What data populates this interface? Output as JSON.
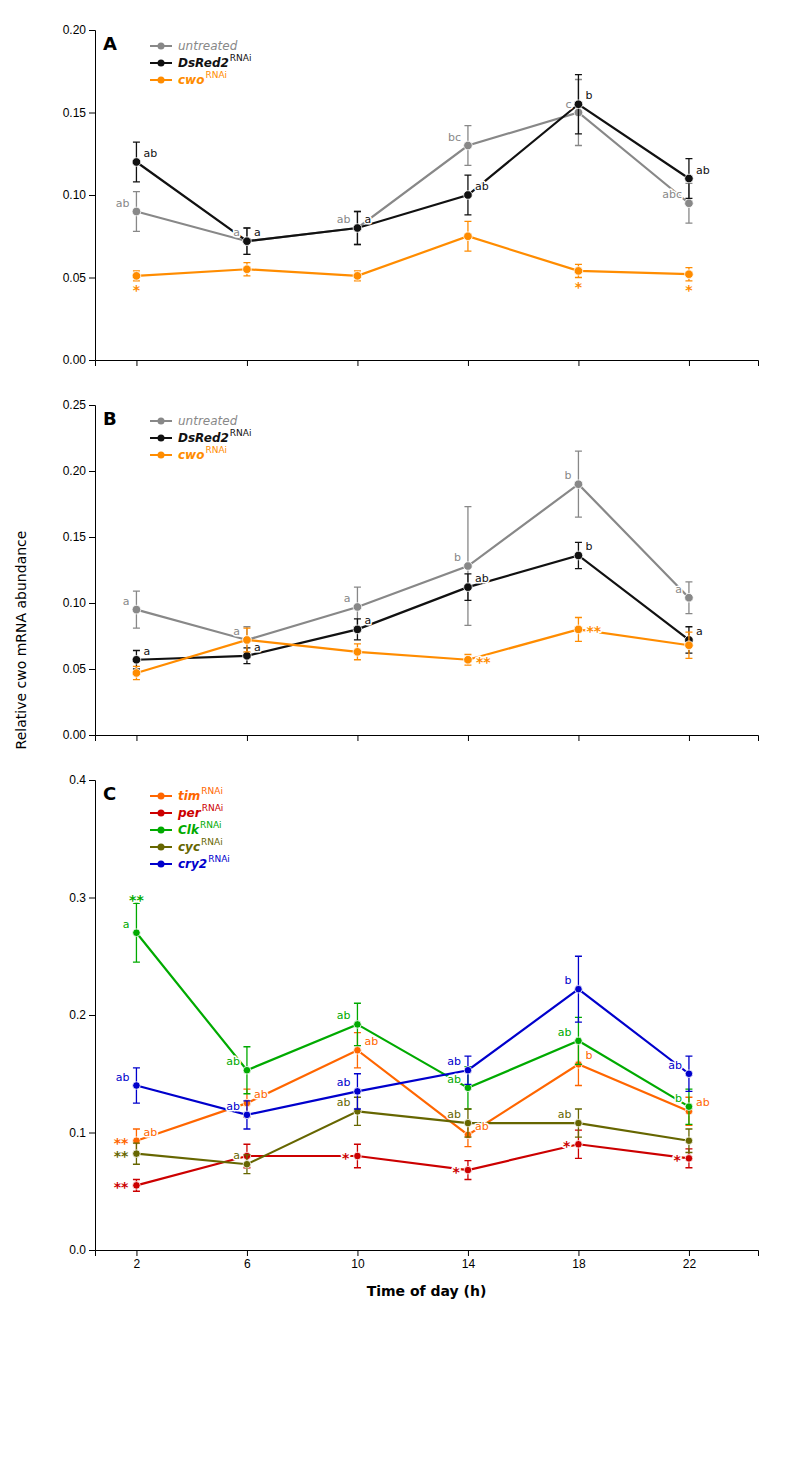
{
  "chart_data": [
    {
      "type": "line",
      "title": "A",
      "x": [
        2,
        6,
        10,
        14,
        18,
        22
      ],
      "xlim": [
        0.5,
        24.5
      ],
      "xticks": [
        2,
        6,
        10,
        14,
        18,
        22
      ],
      "ylim": [
        0,
        0.2
      ],
      "yticks": [
        {
          "value": 0,
          "label": "0.00"
        },
        {
          "value": 0.05,
          "label": "0.05"
        },
        {
          "value": 0.1,
          "label": "0.10"
        },
        {
          "value": 0.15,
          "label": "0.15"
        },
        {
          "value": 0.2,
          "label": "0.20"
        }
      ],
      "tick_labels": "y",
      "legend": "upper left",
      "grid": false,
      "marker": "circle",
      "series": [
        {
          "name": "untreated",
          "color": "#888888",
          "values": [
            0.09,
            0.072,
            0.08,
            0.13,
            0.15,
            0.095
          ],
          "errors": [
            0.012,
            0.008,
            0.01,
            0.012,
            0.02,
            0.012
          ],
          "labels": [
            "ab",
            "a",
            "ab",
            "bc",
            "c",
            "abc"
          ]
        },
        {
          "name": "DsRed2",
          "superscript": "RNAi",
          "color": "#111111",
          "values": [
            0.12,
            0.072,
            0.08,
            0.1,
            0.155,
            0.11
          ],
          "errors": [
            0.012,
            0.008,
            0.01,
            0.012,
            0.018,
            0.012
          ],
          "labels": [
            "ab",
            "a",
            "a",
            "ab",
            "b",
            "ab"
          ]
        },
        {
          "name": "cwo",
          "superscript": "RNAi",
          "color": "#FF8C00",
          "values": [
            0.051,
            0.055,
            0.051,
            0.075,
            0.054,
            0.052
          ],
          "errors": [
            0.003,
            0.004,
            0.003,
            0.009,
            0.004,
            0.004
          ],
          "asterisks": [
            "*",
            null,
            null,
            null,
            "*",
            "*"
          ]
        }
      ]
    },
    {
      "type": "line",
      "title": "B",
      "x": [
        2,
        6,
        10,
        14,
        18,
        22
      ],
      "xlim": [
        0.5,
        24.5
      ],
      "xticks": [
        2,
        6,
        10,
        14,
        18,
        22
      ],
      "ylim": [
        0,
        0.25
      ],
      "yticks": [
        {
          "value": 0,
          "label": "0.00"
        },
        {
          "value": 0.05,
          "label": "0.05"
        },
        {
          "value": 0.1,
          "label": "0.10"
        },
        {
          "value": 0.15,
          "label": "0.15"
        },
        {
          "value": 0.2,
          "label": "0.20"
        },
        {
          "value": 0.25,
          "label": "0.25"
        }
      ],
      "ylabel": "Relative cwo mRNA abundance",
      "tick_labels": "y",
      "legend": "upper left",
      "grid": false,
      "marker": "circle",
      "series": [
        {
          "name": "untreated",
          "color": "#888888",
          "values": [
            0.095,
            0.072,
            0.097,
            0.128,
            0.19,
            0.104
          ],
          "errors": [
            0.014,
            0.01,
            0.015,
            0.045,
            0.025,
            0.012
          ],
          "labels": [
            "a",
            "a",
            "a",
            "b",
            "b",
            "a"
          ]
        },
        {
          "name": "DsRed2",
          "superscript": "RNAi",
          "color": "#111111",
          "values": [
            0.057,
            0.06,
            0.08,
            0.112,
            0.136,
            0.072
          ],
          "errors": [
            0.007,
            0.006,
            0.008,
            0.01,
            0.01,
            0.01
          ],
          "labels": [
            "a",
            "a",
            "a",
            "ab",
            "b",
            "a"
          ]
        },
        {
          "name": "cwo",
          "superscript": "RNAi",
          "color": "#FF8C00",
          "values": [
            0.047,
            0.072,
            0.063,
            0.057,
            0.08,
            0.068
          ],
          "errors": [
            0.005,
            0.009,
            0.006,
            0.004,
            0.009,
            0.01
          ],
          "asterisks": [
            null,
            null,
            null,
            "**",
            "**",
            null
          ]
        }
      ]
    },
    {
      "type": "line",
      "title": "C",
      "x": [
        2,
        6,
        10,
        14,
        18,
        22
      ],
      "xlim": [
        0.5,
        24.5
      ],
      "xticks": [
        2,
        6,
        10,
        14,
        18,
        22
      ],
      "ylim": [
        0,
        0.4
      ],
      "yticks": [
        {
          "value": 0,
          "label": "0.0"
        },
        {
          "value": 0.1,
          "label": "0.1"
        },
        {
          "value": 0.2,
          "label": "0.2"
        },
        {
          "value": 0.3,
          "label": "0.3"
        },
        {
          "value": 0.4,
          "label": "0.4"
        }
      ],
      "xlabel": "Time of day (h)",
      "legend": "upper left",
      "grid": false,
      "marker": "circle",
      "series": [
        {
          "name": "tim",
          "superscript": "RNAi",
          "color": "#FF6600",
          "values": [
            0.093,
            0.125,
            0.17,
            0.098,
            0.158,
            0.118
          ],
          "errors": [
            0.01,
            0.012,
            0.015,
            0.01,
            0.018,
            0.012
          ],
          "labels": [
            "ab",
            "ab",
            "ab",
            "ab",
            "b",
            "ab"
          ],
          "asterisks": [
            "**",
            null,
            null,
            null,
            null,
            null
          ]
        },
        {
          "name": "per",
          "superscript": "RNAi",
          "color": "#CC0000",
          "values": [
            0.055,
            0.08,
            0.08,
            0.068,
            0.09,
            0.078
          ],
          "errors": [
            0.005,
            0.01,
            0.01,
            0.008,
            0.012,
            0.008
          ],
          "asterisks": [
            "**",
            null,
            "*",
            "*",
            "*",
            "*"
          ]
        },
        {
          "name": "Clk",
          "superscript": "RNAi",
          "color": "#00AA00",
          "values": [
            0.27,
            0.153,
            0.192,
            0.138,
            0.178,
            0.122
          ],
          "errors": [
            0.025,
            0.02,
            0.018,
            0.018,
            0.02,
            0.015
          ],
          "labels": [
            "a",
            "ab",
            "ab",
            "ab",
            "ab",
            "b"
          ],
          "asterisks": [
            "**",
            null,
            null,
            null,
            null,
            null
          ]
        },
        {
          "name": "cyc",
          "superscript": "RNAi",
          "color": "#666600",
          "values": [
            0.082,
            0.073,
            0.118,
            0.108,
            0.108,
            0.093
          ],
          "errors": [
            0.009,
            0.008,
            0.012,
            0.012,
            0.012,
            0.01
          ],
          "labels": [
            null,
            "a",
            "ab",
            "ab",
            "ab",
            null
          ],
          "asterisks": [
            "**",
            null,
            null,
            null,
            null,
            null
          ]
        },
        {
          "name": "cry2",
          "superscript": "RNAi",
          "color": "#0000CC",
          "values": [
            0.14,
            0.115,
            0.135,
            0.153,
            0.222,
            0.15
          ],
          "errors": [
            0.015,
            0.012,
            0.015,
            0.012,
            0.028,
            0.015
          ],
          "labels": [
            "ab",
            "ab",
            "ab",
            "ab",
            "b",
            "ab"
          ]
        }
      ]
    }
  ]
}
